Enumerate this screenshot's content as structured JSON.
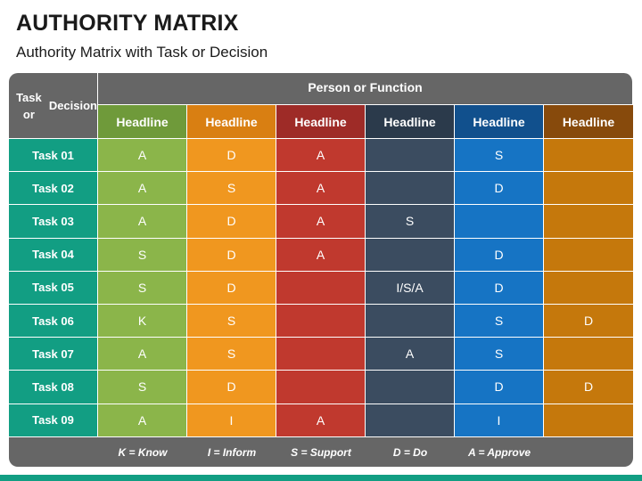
{
  "title": "AUTHORITY MATRIX",
  "subtitle": "Authority Matrix with Task or Decision",
  "matrix": {
    "corner_label": [
      "Task or",
      "Decision"
    ],
    "group_header": "Person or Function",
    "columns": [
      {
        "label": "Headline",
        "header_color": "#6f9a3a",
        "cell_color": "#8bb54a"
      },
      {
        "label": "Headline",
        "header_color": "#d97f12",
        "cell_color": "#f0971f"
      },
      {
        "label": "Headline",
        "header_color": "#9e2b27",
        "cell_color": "#c0392e"
      },
      {
        "label": "Headline",
        "header_color": "#2b3a4b",
        "cell_color": "#3b4c60"
      },
      {
        "label": "Headline",
        "header_color": "#11508d",
        "cell_color": "#1674c4"
      },
      {
        "label": "Headline",
        "header_color": "#874a0c",
        "cell_color": "#c5780c"
      }
    ],
    "rows": [
      {
        "task": "Task 01",
        "values": [
          "A",
          "D",
          "A",
          "",
          "S",
          ""
        ]
      },
      {
        "task": "Task 02",
        "values": [
          "A",
          "S",
          "A",
          "",
          "D",
          ""
        ]
      },
      {
        "task": "Task 03",
        "values": [
          "A",
          "D",
          "A",
          "S",
          "",
          ""
        ]
      },
      {
        "task": "Task 04",
        "values": [
          "S",
          "D",
          "A",
          "",
          "D",
          ""
        ]
      },
      {
        "task": "Task 05",
        "values": [
          "S",
          "D",
          "",
          "I/S/A",
          "D",
          ""
        ]
      },
      {
        "task": "Task 06",
        "values": [
          "K",
          "S",
          "",
          "",
          "S",
          "D"
        ]
      },
      {
        "task": "Task 07",
        "values": [
          "A",
          "S",
          "",
          "A",
          "S",
          ""
        ]
      },
      {
        "task": "Task 08",
        "values": [
          "S",
          "D",
          "",
          "",
          "D",
          "D"
        ]
      },
      {
        "task": "Task 09",
        "values": [
          "A",
          "I",
          "A",
          "",
          "I",
          ""
        ]
      }
    ],
    "legend": [
      "K = Know",
      "I = Inform",
      "S = Support",
      "D = Do",
      "A = Approve"
    ]
  },
  "colors": {
    "header_gray": "#666666",
    "task_green": "#129e83",
    "footer_green": "#129e83"
  }
}
